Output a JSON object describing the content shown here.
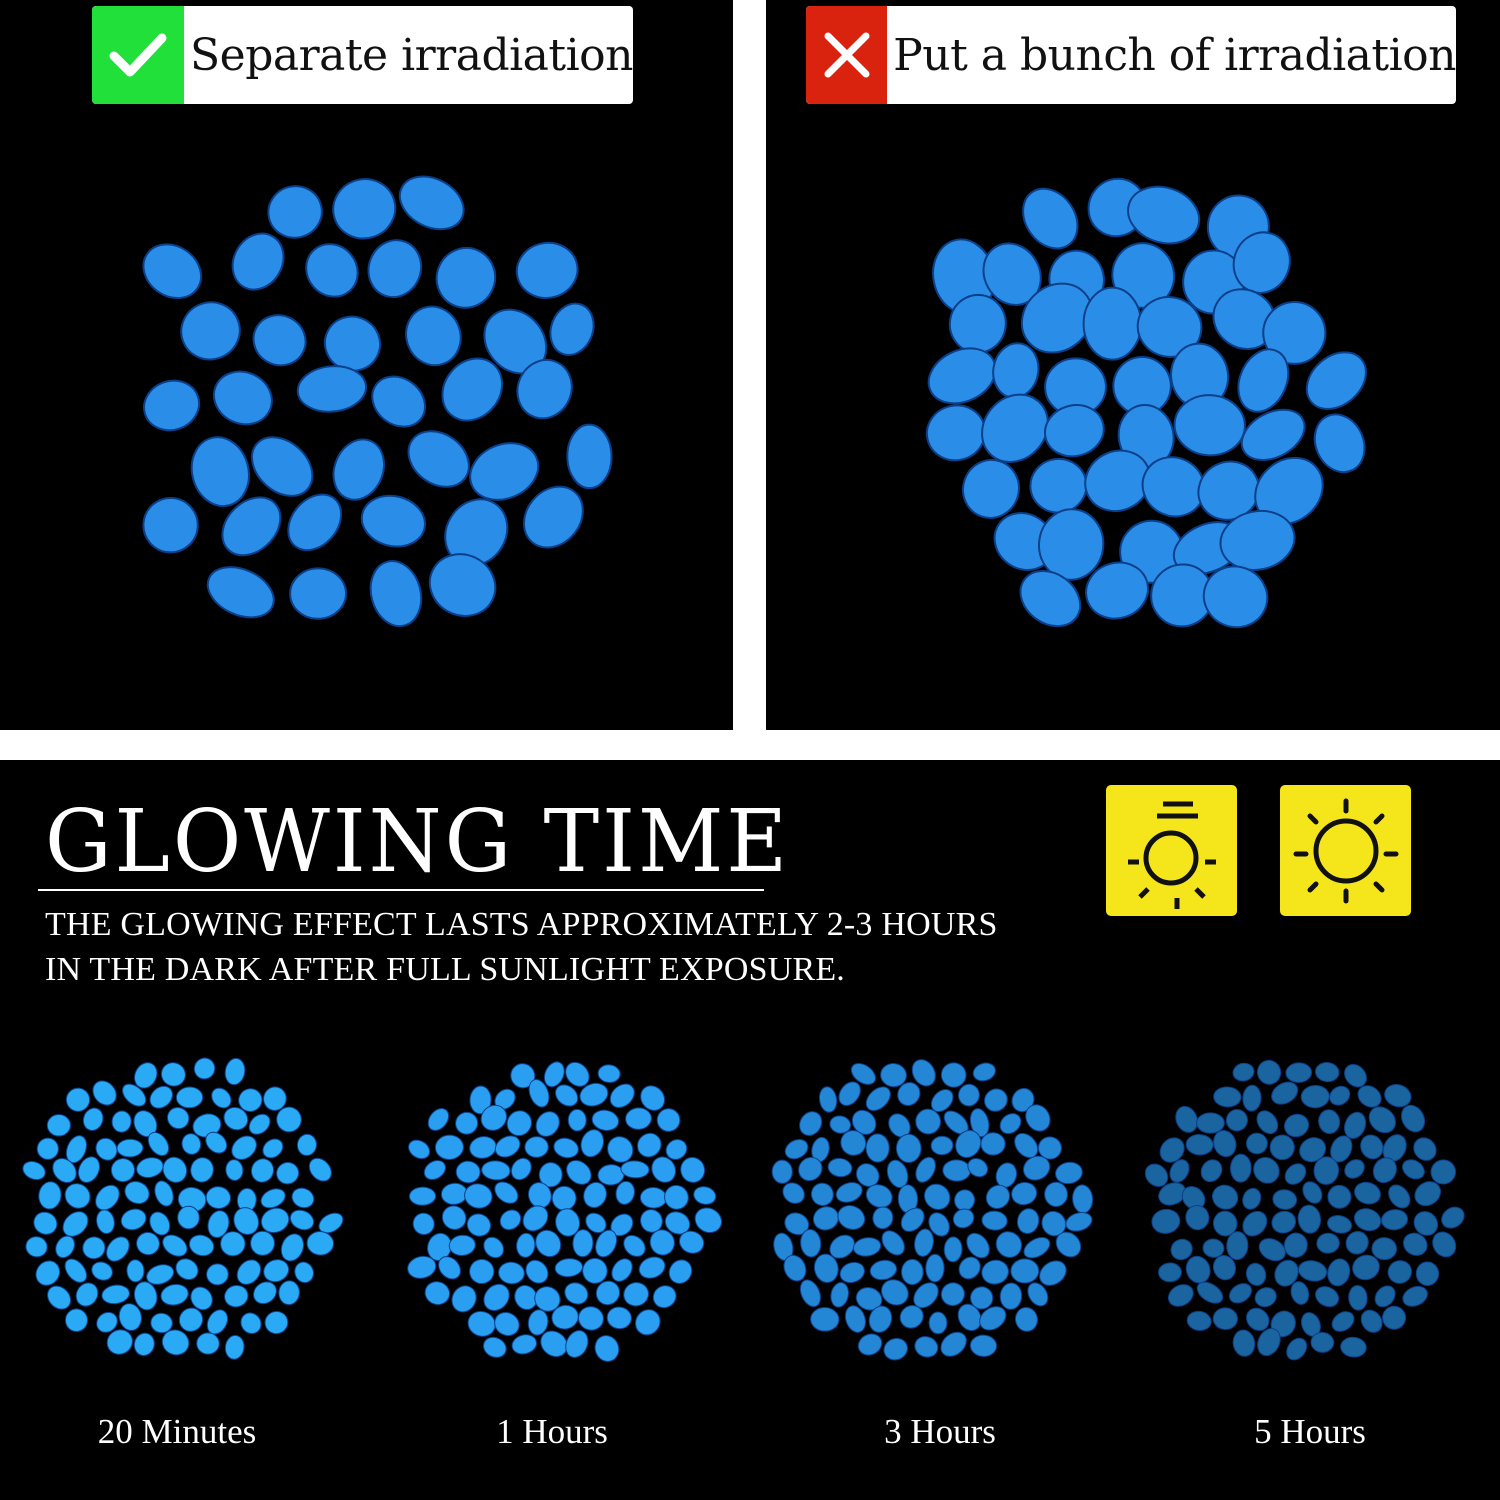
{
  "comparison": {
    "good": {
      "label": "Separate irradiation",
      "icon": "check-icon",
      "color": "#22e03a"
    },
    "bad": {
      "label": "Put a bunch of irradiation",
      "icon": "x-icon",
      "color": "#d9230f"
    }
  },
  "glowing": {
    "title": "GLOWING TIME",
    "description_line1": "THE GLOWING EFFECT LASTS APPROXIMATELY 2-3 HOURS",
    "description_line2": "IN THE DARK AFTER FULL SUNLIGHT EXPOSURE.",
    "icons": [
      "lamp-light-icon",
      "sun-icon"
    ],
    "icon_color": "#f5e61c",
    "stages": [
      {
        "label": "20 Minutes",
        "color": "#2aa9f5"
      },
      {
        "label": "1 Hours",
        "color": "#2a9ef0"
      },
      {
        "label": "3 Hours",
        "color": "#2387d6"
      },
      {
        "label": "5 Hours",
        "color": "#1a64a0"
      }
    ]
  },
  "pebble_color": "#2a8ee8"
}
